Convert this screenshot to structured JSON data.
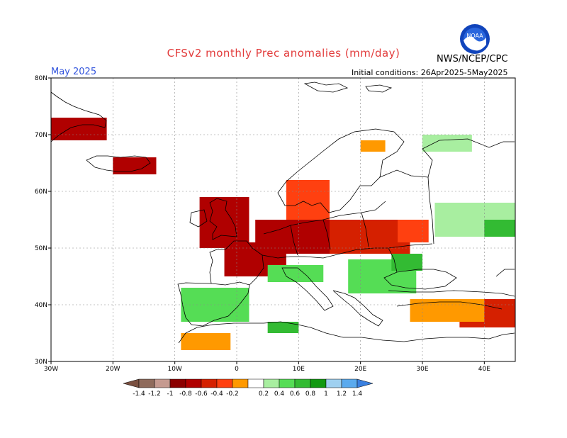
{
  "header": {
    "title": "CFSv2 monthly Prec anomalies (mm/day)",
    "month": "May 2025",
    "initial_conditions": "Initial conditions: 26Apr2025-5May2025",
    "agency": "NWS/NCEP/CPC",
    "logo_text": "NOAA"
  },
  "axes": {
    "lon_ticks": [
      {
        "value": -30,
        "label": "30W"
      },
      {
        "value": -20,
        "label": "20W"
      },
      {
        "value": -10,
        "label": "10W"
      },
      {
        "value": 0,
        "label": "0"
      },
      {
        "value": 10,
        "label": "10E"
      },
      {
        "value": 20,
        "label": "20E"
      },
      {
        "value": 30,
        "label": "30E"
      },
      {
        "value": 40,
        "label": "40E"
      }
    ],
    "lat_ticks": [
      {
        "value": 30,
        "label": "30N"
      },
      {
        "value": 40,
        "label": "40N"
      },
      {
        "value": 50,
        "label": "50N"
      },
      {
        "value": 60,
        "label": "60N"
      },
      {
        "value": 70,
        "label": "70N"
      },
      {
        "value": 80,
        "label": "80N"
      }
    ],
    "lon_range": [
      -30,
      45
    ],
    "lat_range": [
      30,
      80
    ],
    "grid": true
  },
  "colorbar": {
    "labels": [
      "-1.4",
      "-1.2",
      "-1",
      "-0.8",
      "-0.6",
      "-0.4",
      "-0.2",
      "0.2",
      "0.4",
      "0.6",
      "0.8",
      "1",
      "1.2",
      "1.4"
    ],
    "colors": [
      "#7a5040",
      "#8f6b5c",
      "#c59a90",
      "#8b0000",
      "#b00000",
      "#d52000",
      "#ff4010",
      "#ff9900",
      "#ffffff",
      "#a8eea0",
      "#55dd55",
      "#33bb33",
      "#119911",
      "#9fd0f0",
      "#5aaaee",
      "#3a80e0"
    ]
  },
  "anomaly_regions": [
    {
      "lon": [
        -6,
        2
      ],
      "lat": [
        50,
        59
      ],
      "color": "#b00000"
    },
    {
      "lon": [
        -2,
        8
      ],
      "lat": [
        45,
        51
      ],
      "color": "#b00000"
    },
    {
      "lon": [
        3,
        16
      ],
      "lat": [
        49,
        55
      ],
      "color": "#b00000"
    },
    {
      "lon": [
        15,
        28
      ],
      "lat": [
        49,
        55
      ],
      "color": "#d52000"
    },
    {
      "lon": [
        26,
        31
      ],
      "lat": [
        51,
        55
      ],
      "color": "#ff4010"
    },
    {
      "lon": [
        8,
        15
      ],
      "lat": [
        55,
        62
      ],
      "color": "#ff4010"
    },
    {
      "lon": [
        -20,
        -13
      ],
      "lat": [
        63,
        66
      ],
      "color": "#b00000"
    },
    {
      "lon": [
        -30,
        -21
      ],
      "lat": [
        69,
        73
      ],
      "color": "#b00000"
    },
    {
      "lon": [
        36,
        45
      ],
      "lat": [
        36,
        41
      ],
      "color": "#d52000"
    },
    {
      "lon": [
        -9,
        2
      ],
      "lat": [
        37,
        43
      ],
      "color": "#55dd55"
    },
    {
      "lon": [
        5,
        14
      ],
      "lat": [
        44,
        47
      ],
      "color": "#55dd55"
    },
    {
      "lon": [
        18,
        29
      ],
      "lat": [
        42,
        48
      ],
      "color": "#55dd55"
    },
    {
      "lon": [
        25,
        30
      ],
      "lat": [
        46,
        49
      ],
      "color": "#33bb33"
    },
    {
      "lon": [
        32,
        45
      ],
      "lat": [
        52,
        58
      ],
      "color": "#a8eea0"
    },
    {
      "lon": [
        40,
        45
      ],
      "lat": [
        52,
        55
      ],
      "color": "#33bb33"
    },
    {
      "lon": [
        30,
        38
      ],
      "lat": [
        67,
        70
      ],
      "color": "#a8eea0"
    },
    {
      "lon": [
        20,
        24
      ],
      "lat": [
        67,
        69
      ],
      "color": "#ff9900"
    },
    {
      "lon": [
        28,
        40
      ],
      "lat": [
        37,
        41
      ],
      "color": "#ff9900"
    },
    {
      "lon": [
        -9,
        -1
      ],
      "lat": [
        32,
        35
      ],
      "color": "#ff9900"
    },
    {
      "lon": [
        5,
        10
      ],
      "lat": [
        35,
        37
      ],
      "color": "#33bb33"
    }
  ]
}
